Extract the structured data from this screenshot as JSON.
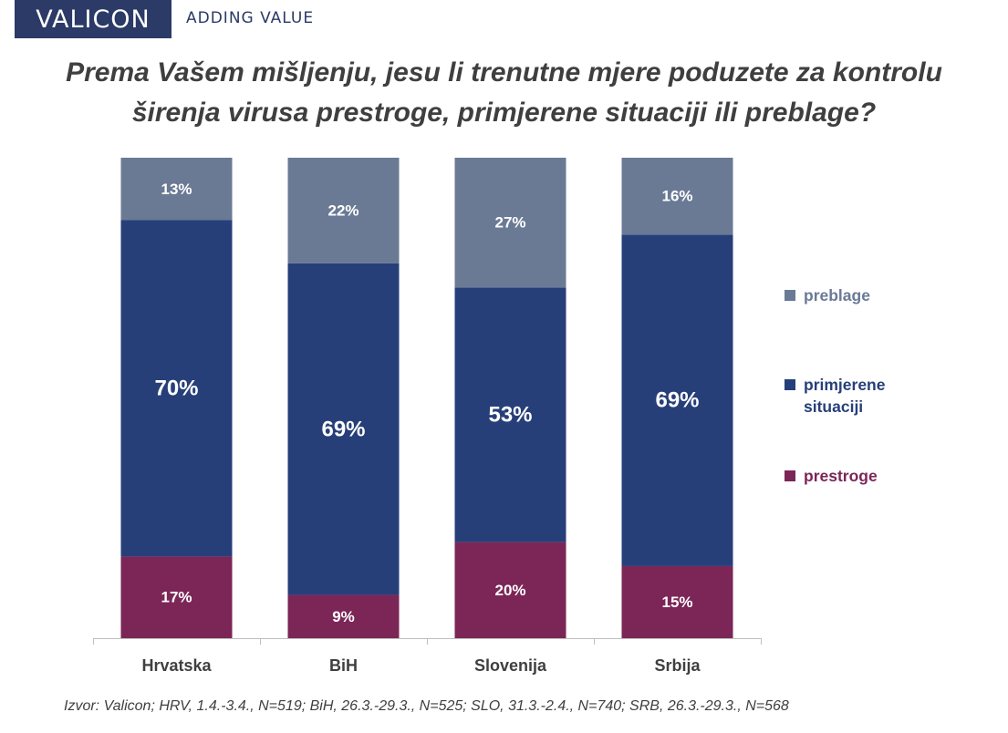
{
  "header": {
    "logo_text": "VALICON",
    "tagline": "ADDING VALUE"
  },
  "title_lines": [
    "Prema Vašem mišljenju, jesu li trenutne mjere poduzete za kontrolu",
    "širenja virusa  prestroge, primjerene situaciji ili preblage?"
  ],
  "chart_data": {
    "type": "bar",
    "stacked": true,
    "percent_stacked": true,
    "categories": [
      "Hrvatska",
      "BiH",
      "Slovenija",
      "Srbija"
    ],
    "series": [
      {
        "name": "prestroge",
        "color": "#7b2657",
        "values": [
          17,
          9,
          20,
          15
        ],
        "labels": [
          "17%",
          "9%",
          "20%",
          "15%"
        ]
      },
      {
        "name": "primjerene situaciji",
        "color": "#273f79",
        "values": [
          70,
          69,
          53,
          69
        ],
        "labels": [
          "70%",
          "69%",
          "53%",
          "69%"
        ]
      },
      {
        "name": "preblage",
        "color": "#6a7a95",
        "values": [
          13,
          22,
          27,
          16
        ],
        "labels": [
          "13%",
          "22%",
          "27%",
          "16%"
        ]
      }
    ],
    "ylim": [
      0,
      100
    ],
    "grid": false,
    "legend_position": "right"
  },
  "legend": [
    {
      "label": "preblage",
      "color": "#6a7a95"
    },
    {
      "label": "primjerene situaciji",
      "color": "#273f79"
    },
    {
      "label": "prestroge",
      "color": "#7b2657"
    }
  ],
  "source": "Izvor: Valicon; HRV, 1.4.-3.4., N=519; BiH, 26.3.-29.3., N=525; SLO, 31.3.-2.4., N=740; SRB, 26.3.-29.3., N=568"
}
